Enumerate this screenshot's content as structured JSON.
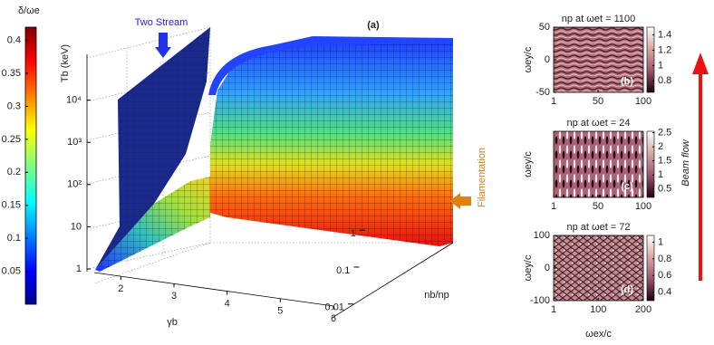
{
  "chart_data": [
    {
      "type": "surface3d",
      "title": "(a)",
      "colorbar_label": "δ/ωe",
      "clim": [
        0,
        0.42
      ],
      "colorbar_ticks": [
        0.05,
        0.1,
        0.15,
        0.2,
        0.25,
        0.3,
        0.35,
        0.4
      ],
      "xlabel": "γb",
      "xlim": [
        1.5,
        6
      ],
      "xticks": [
        2,
        3,
        4,
        5,
        6
      ],
      "ylabel": "nb/np",
      "ylog": true,
      "ylim": [
        0.005,
        1.5
      ],
      "yticks": [
        0.01,
        0.1,
        1
      ],
      "zlabel": "Tb (keV)",
      "zlog": true,
      "zlim": [
        1,
        100000
      ],
      "zticks": [
        1,
        10,
        {
          "value": 100,
          "label": "10²"
        },
        {
          "value": 1000,
          "label": "10³"
        },
        {
          "value": 10000,
          "label": "10⁴"
        }
      ],
      "annotations": [
        "Two Stream",
        "Filamentation"
      ]
    },
    {
      "type": "heatmap",
      "title": "np at ωet = 1100",
      "panel_label": "(b)",
      "ylabel": "ωey/c",
      "xlim": [
        1,
        100
      ],
      "xticks": [
        1,
        50,
        100
      ],
      "ylim": [
        -50,
        50
      ],
      "yticks": [
        -50,
        0,
        50
      ],
      "clim": [
        0.65,
        1.5
      ],
      "colorbar_ticks": [
        0.8,
        1,
        1.2,
        1.4
      ]
    },
    {
      "type": "heatmap",
      "title": "np at ωet = 24",
      "panel_label": "(c)",
      "ylabel": "ωey/c",
      "xlim": [
        1,
        100
      ],
      "xticks": [
        1,
        50,
        100
      ],
      "clim": [
        0.2,
        2.55
      ],
      "colorbar_ticks": [
        0.5,
        1,
        1.5,
        2,
        2.5
      ]
    },
    {
      "type": "heatmap",
      "title": "np at ωet = 72",
      "panel_label": "(d)",
      "ylabel": "ωey/c",
      "xlabel": "ωex/c",
      "xlim": [
        1,
        200
      ],
      "xticks": [
        1,
        100,
        200
      ],
      "ylim": [
        -100,
        100
      ],
      "yticks": [
        -100,
        0,
        100
      ],
      "clim": [
        0.3,
        1.08
      ],
      "colorbar_ticks": [
        0.4,
        0.6,
        0.8,
        1
      ]
    }
  ],
  "annotation": "Beam flow"
}
